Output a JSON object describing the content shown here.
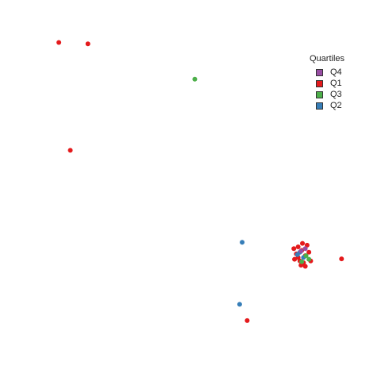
{
  "chart_data": {
    "type": "scatter",
    "title": "",
    "xlabel": "",
    "ylabel": "",
    "axes_shown": false,
    "grid": false,
    "xlim": [
      0,
      100
    ],
    "ylim": [
      0,
      100
    ],
    "legend": {
      "title": "Quartiles",
      "placement": "top-right",
      "entries": [
        {
          "label": "Q4",
          "color": "#984EA3"
        },
        {
          "label": "Q1",
          "color": "#E41A1C"
        },
        {
          "label": "Q3",
          "color": "#4DAF4A"
        },
        {
          "label": "Q2",
          "color": "#377EB8"
        }
      ]
    },
    "series": [
      {
        "name": "Q1",
        "color": "#E41A1C",
        "points": [
          [
            13.3,
            92.0
          ],
          [
            21.4,
            91.6
          ],
          [
            16.5,
            61.4
          ],
          [
            92.1,
            30.6
          ],
          [
            65.8,
            13.1
          ],
          [
            80.0,
            34.0
          ],
          [
            81.0,
            33.0
          ],
          [
            79.5,
            32.0
          ],
          [
            82.0,
            31.5
          ],
          [
            80.5,
            30.0
          ],
          [
            81.5,
            29.5
          ],
          [
            79.0,
            30.5
          ],
          [
            83.0,
            32.5
          ],
          [
            82.5,
            34.5
          ],
          [
            80.0,
            31.0
          ],
          [
            81.2,
            35.0
          ],
          [
            83.5,
            30.0
          ],
          [
            78.8,
            33.5
          ],
          [
            82.0,
            28.5
          ],
          [
            80.8,
            28.8
          ]
        ]
      },
      {
        "name": "Q2",
        "color": "#377EB8",
        "points": [
          [
            64.4,
            35.3
          ],
          [
            63.7,
            17.7
          ],
          [
            80.5,
            32.5
          ],
          [
            81.5,
            31.0
          ],
          [
            79.8,
            31.8
          ]
        ]
      },
      {
        "name": "Q3",
        "color": "#4DAF4A",
        "points": [
          [
            51.2,
            81.6
          ],
          [
            82.2,
            31.5
          ],
          [
            83.0,
            30.5
          ],
          [
            81.0,
            29.8
          ]
        ]
      },
      {
        "name": "Q4",
        "color": "#984EA3",
        "points": [
          [
            80.8,
            32.8
          ],
          [
            82.0,
            33.5
          ]
        ]
      }
    ]
  }
}
